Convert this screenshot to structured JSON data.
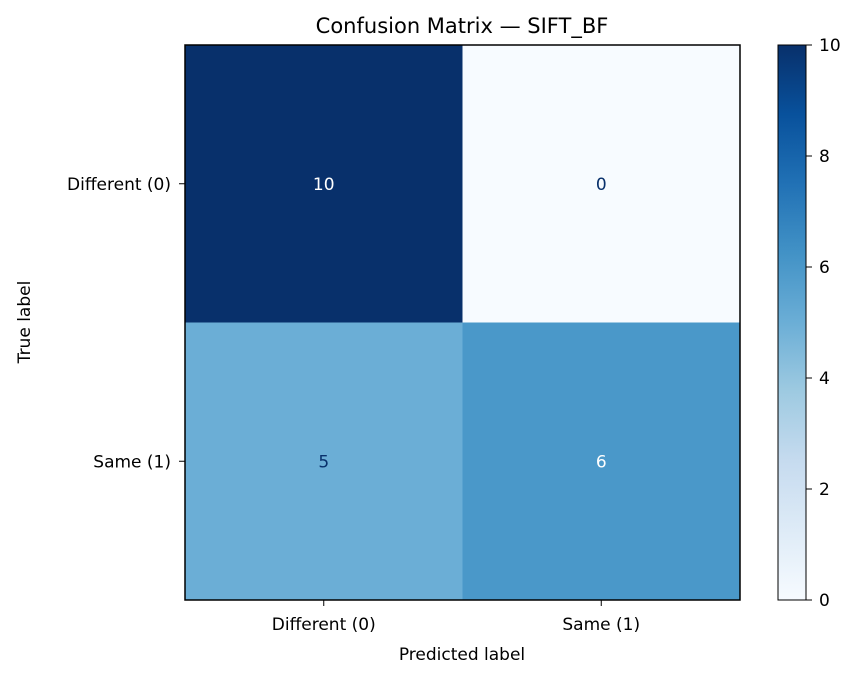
{
  "chart_data": {
    "type": "heatmap",
    "title": "Confusion Matrix — SIFT_BF",
    "xlabel": "Predicted label",
    "ylabel": "True label",
    "x_categories": [
      "Different (0)",
      "Same (1)"
    ],
    "y_categories": [
      "Different (0)",
      "Same (1)"
    ],
    "values": [
      [
        10,
        0
      ],
      [
        5,
        6
      ]
    ],
    "colormap": "Blues",
    "colorbar": {
      "min": 0,
      "max": 10,
      "ticks": [
        "0",
        "2",
        "4",
        "6",
        "8",
        "10"
      ]
    },
    "grid": false
  }
}
